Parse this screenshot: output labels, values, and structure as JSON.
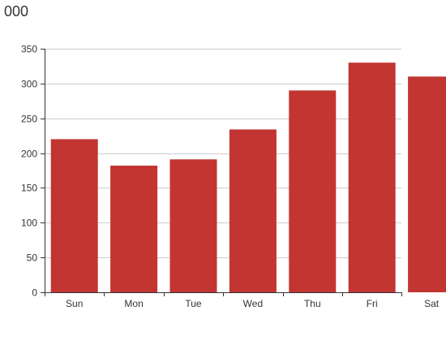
{
  "chart_data": {
    "type": "bar",
    "title": "000",
    "categories": [
      "Sun",
      "Mon",
      "Tue",
      "Wed",
      "Thu",
      "Fri",
      "Sat"
    ],
    "values": [
      220,
      182,
      191,
      234,
      290,
      330,
      310
    ],
    "ylim": [
      0,
      350
    ],
    "yticks": [
      0,
      50,
      100,
      150,
      200,
      250,
      300,
      350
    ],
    "grid": true,
    "colors": {
      "bar": "#c23531",
      "grid": "#cccccc",
      "axis": "#333333",
      "label": "#333333"
    }
  }
}
